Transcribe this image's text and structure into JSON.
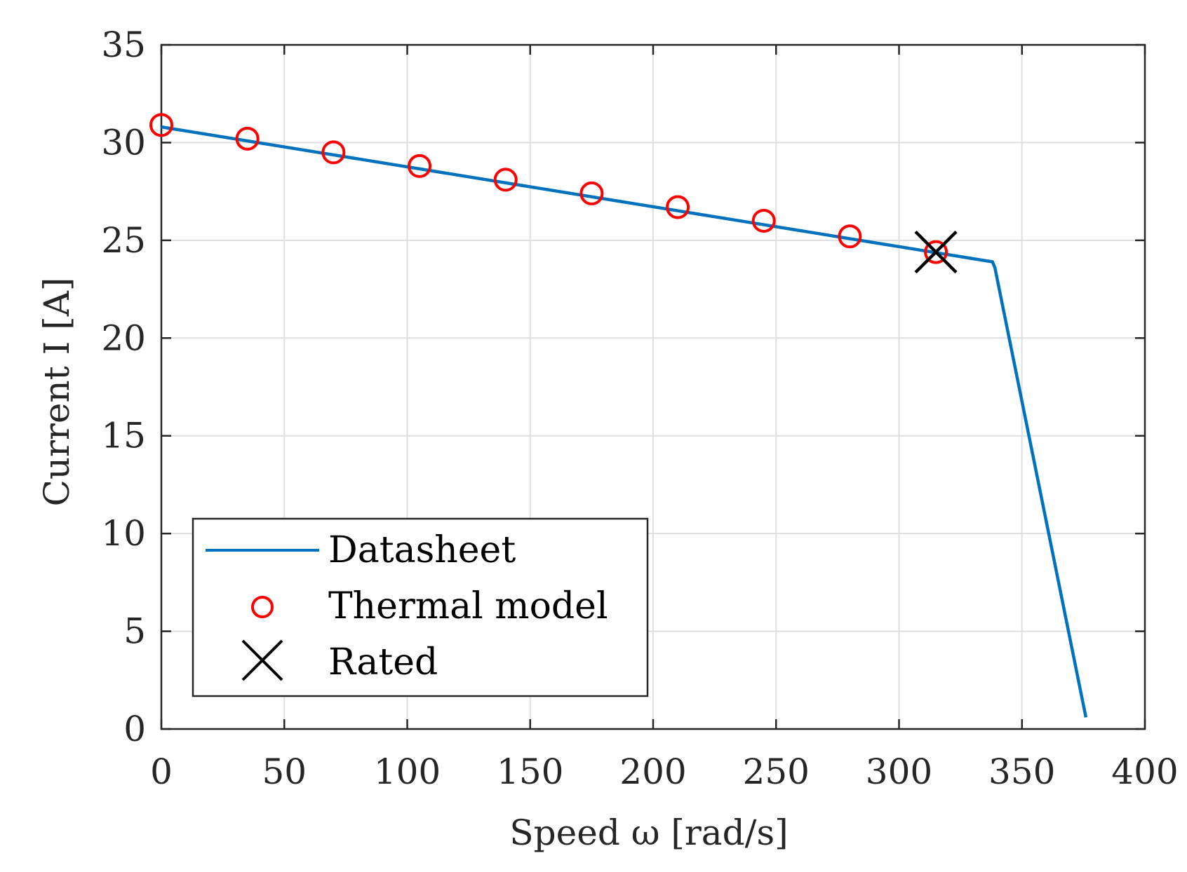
{
  "chart_data": {
    "type": "line",
    "xlabel": "Speed ω [rad/s]",
    "ylabel": "Current I [A]",
    "xlim": [
      0,
      400
    ],
    "ylim": [
      0,
      35
    ],
    "xticks": [
      0,
      50,
      100,
      150,
      200,
      250,
      300,
      350,
      400
    ],
    "yticks": [
      0,
      5,
      10,
      15,
      20,
      25,
      30,
      35
    ],
    "grid": true,
    "legend_position": "bottom-left",
    "series": [
      {
        "name": "Datasheet",
        "kind": "line",
        "color": "#0072BD",
        "x": [
          0,
          338,
          339,
          376
        ],
        "y": [
          30.8,
          23.9,
          23.6,
          0.6
        ]
      },
      {
        "name": "Thermal model",
        "kind": "marker-circle",
        "color": "#FF0000",
        "x": [
          0,
          35,
          70,
          105,
          140,
          175,
          210,
          245,
          280,
          315
        ],
        "y": [
          30.9,
          30.2,
          29.5,
          28.8,
          28.1,
          27.4,
          26.7,
          26.0,
          25.2,
          24.4
        ]
      },
      {
        "name": "Rated",
        "kind": "marker-x",
        "color": "#000000",
        "x": [
          315
        ],
        "y": [
          24.4
        ]
      }
    ]
  }
}
